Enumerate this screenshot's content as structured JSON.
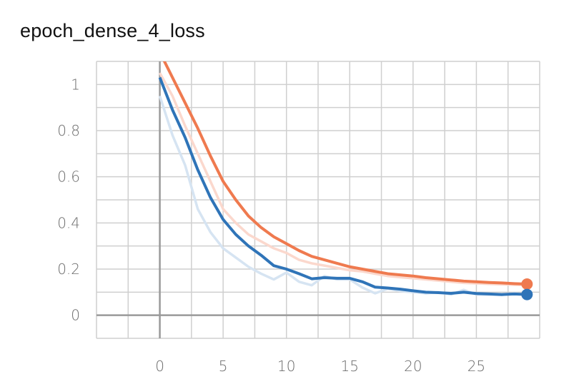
{
  "title": "epoch_dense_4_loss",
  "colors": {
    "orange": "#ef7a4f",
    "orange_raw": "#fbd8cd",
    "blue": "#2f74b8",
    "blue_raw": "#d6e4f2",
    "grid": "#cfcfcf",
    "axis": "#9a9a9a",
    "tick_text": "#6b6b6b"
  },
  "chart_data": {
    "type": "line",
    "title": "epoch_dense_4_loss",
    "xlabel": "",
    "ylabel": "",
    "xlim": [
      -5,
      30
    ],
    "ylim": [
      -0.1,
      1.1
    ],
    "grid": true,
    "x_ticks": [
      0,
      5,
      10,
      15,
      20,
      25
    ],
    "x_tick_labels": [
      "0",
      "5",
      "10",
      "15",
      "20",
      "25"
    ],
    "y_ticks": [
      0,
      0.2,
      0.4,
      0.6,
      0.8,
      1
    ],
    "y_tick_labels": [
      "0",
      "0.2",
      "0.4",
      "0.6",
      "0.8",
      "1"
    ],
    "x": [
      0,
      1,
      2,
      3,
      4,
      5,
      6,
      7,
      8,
      9,
      10,
      11,
      12,
      13,
      14,
      15,
      16,
      17,
      18,
      19,
      20,
      21,
      22,
      23,
      24,
      25,
      26,
      27,
      28,
      29
    ],
    "series": [
      {
        "color": "#ef7a4f",
        "raw_color": "#fbd8cd",
        "smoothed": [
          1.14,
          1.03,
          0.92,
          0.81,
          0.69,
          0.58,
          0.5,
          0.43,
          0.38,
          0.34,
          0.31,
          0.28,
          0.255,
          0.24,
          0.225,
          0.21,
          0.2,
          0.19,
          0.18,
          0.175,
          0.17,
          0.163,
          0.158,
          0.153,
          0.148,
          0.145,
          0.142,
          0.14,
          0.137,
          0.135
        ],
        "raw": [
          1.05,
          0.95,
          0.82,
          0.7,
          0.58,
          0.46,
          0.4,
          0.35,
          0.32,
          0.29,
          0.27,
          0.24,
          0.225,
          0.215,
          0.205,
          0.195,
          0.19,
          0.18,
          0.17,
          0.165,
          0.16,
          0.155,
          0.15,
          0.145,
          0.14,
          0.138,
          0.136,
          0.134,
          0.132,
          0.131
        ]
      },
      {
        "color": "#2f74b8",
        "raw_color": "#d6e4f2",
        "smoothed": [
          1.03,
          0.89,
          0.77,
          0.63,
          0.51,
          0.415,
          0.35,
          0.3,
          0.26,
          0.215,
          0.2,
          0.18,
          0.158,
          0.163,
          0.16,
          0.16,
          0.145,
          0.122,
          0.118,
          0.113,
          0.106,
          0.1,
          0.098,
          0.095,
          0.1,
          0.094,
          0.092,
          0.09,
          0.092,
          0.09
        ],
        "raw": [
          0.95,
          0.78,
          0.65,
          0.46,
          0.36,
          0.29,
          0.25,
          0.21,
          0.18,
          0.155,
          0.185,
          0.145,
          0.13,
          0.17,
          0.155,
          0.155,
          0.12,
          0.095,
          0.115,
          0.105,
          0.1,
          0.095,
          0.1,
          0.09,
          0.11,
          0.09,
          0.09,
          0.088,
          0.095,
          0.088
        ]
      }
    ]
  }
}
